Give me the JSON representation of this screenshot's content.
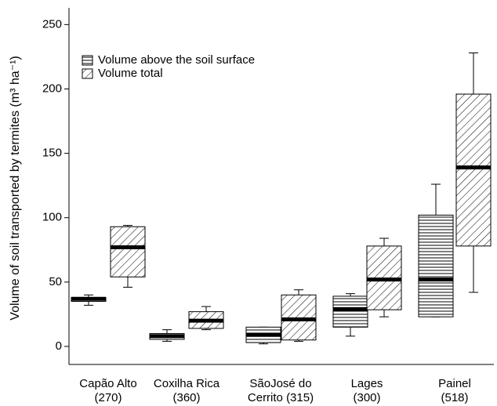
{
  "chart_data": {
    "type": "box",
    "y_label": "Volume of soil transported by termites (m³ ha⁻¹)",
    "categories": [
      [
        "Capão Alto",
        "(270)"
      ],
      [
        "Coxilha Rica",
        "(360)"
      ],
      [
        "SãoJosé do",
        "Cerrito (315)"
      ],
      [
        "Lages",
        "(300)"
      ],
      [
        "Painel",
        "(518)"
      ]
    ],
    "series": [
      {
        "name": "Volume above the soil surface",
        "pattern": "horizontal",
        "color": "#000000",
        "values": [
          {
            "low": 32,
            "q1": 35,
            "median": 37,
            "q3": 38,
            "high": 40
          },
          {
            "low": 4,
            "q1": 5.5,
            "median": 8,
            "q3": 10,
            "high": 13
          },
          {
            "low": 2,
            "q1": 3,
            "median": 9,
            "q3": 15,
            "high": 15
          },
          {
            "low": 8,
            "q1": 15,
            "median": 29,
            "q3": 39,
            "high": 41
          },
          {
            "low": 23,
            "q1": 23,
            "median": 52,
            "q3": 102,
            "high": 126
          }
        ]
      },
      {
        "name": "Volume total",
        "pattern": "diagonal",
        "color": "#000000",
        "values": [
          {
            "low": 46,
            "q1": 54,
            "median": 77,
            "q3": 93,
            "high": 94
          },
          {
            "low": 13,
            "q1": 14,
            "median": 20,
            "q3": 27,
            "high": 31
          },
          {
            "low": 4,
            "q1": 5,
            "median": 21,
            "q3": 40,
            "high": 44
          },
          {
            "low": 23,
            "q1": 28.5,
            "median": 52,
            "q3": 78,
            "high": 84
          },
          {
            "low": 42,
            "q1": 78,
            "median": 139,
            "q3": 196,
            "high": 228
          }
        ]
      }
    ],
    "ylim": [
      -14,
      263
    ],
    "yticks": [
      0,
      50,
      100,
      150,
      200,
      250
    ],
    "grid": false,
    "legend": "upper left"
  }
}
